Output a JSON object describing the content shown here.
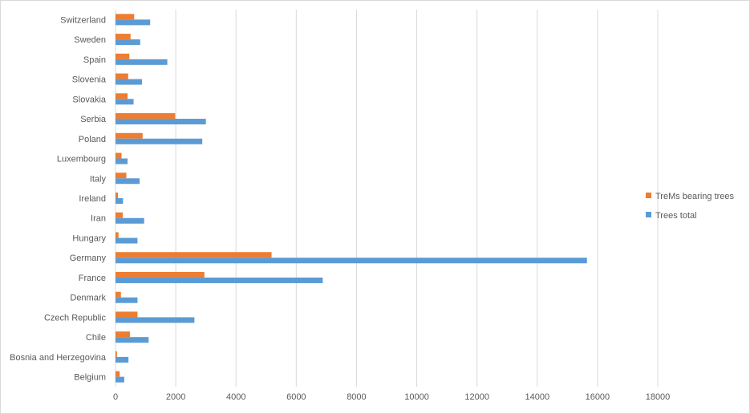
{
  "chart_data": {
    "type": "bar",
    "orientation": "horizontal",
    "categories": [
      "Belgium",
      "Bosnia and Herzegovina",
      "Chile",
      "Czech Republic",
      "Denmark",
      "France",
      "Germany",
      "Hungary",
      "Iran",
      "Ireland",
      "Italy",
      "Luxembourg",
      "Poland",
      "Serbia",
      "Slovakia",
      "Slovenia",
      "Spain",
      "Sweden",
      "Switzerland"
    ],
    "series": [
      {
        "name": "TreMs bearing trees",
        "color": "#ED7D31",
        "values": [
          140,
          50,
          480,
          730,
          180,
          2950,
          5180,
          100,
          240,
          80,
          360,
          200,
          900,
          1980,
          400,
          420,
          460,
          500,
          620
        ]
      },
      {
        "name": "Trees total",
        "color": "#5B9BD5",
        "values": [
          290,
          430,
          1100,
          2620,
          730,
          6880,
          15650,
          730,
          950,
          250,
          800,
          400,
          2880,
          3000,
          600,
          880,
          1720,
          820,
          1150
        ]
      }
    ],
    "xlim": [
      0,
      18000
    ],
    "xticks": [
      0,
      2000,
      4000,
      6000,
      8000,
      10000,
      12000,
      14000,
      16000,
      18000
    ],
    "grid": true,
    "legend_position": "right"
  }
}
